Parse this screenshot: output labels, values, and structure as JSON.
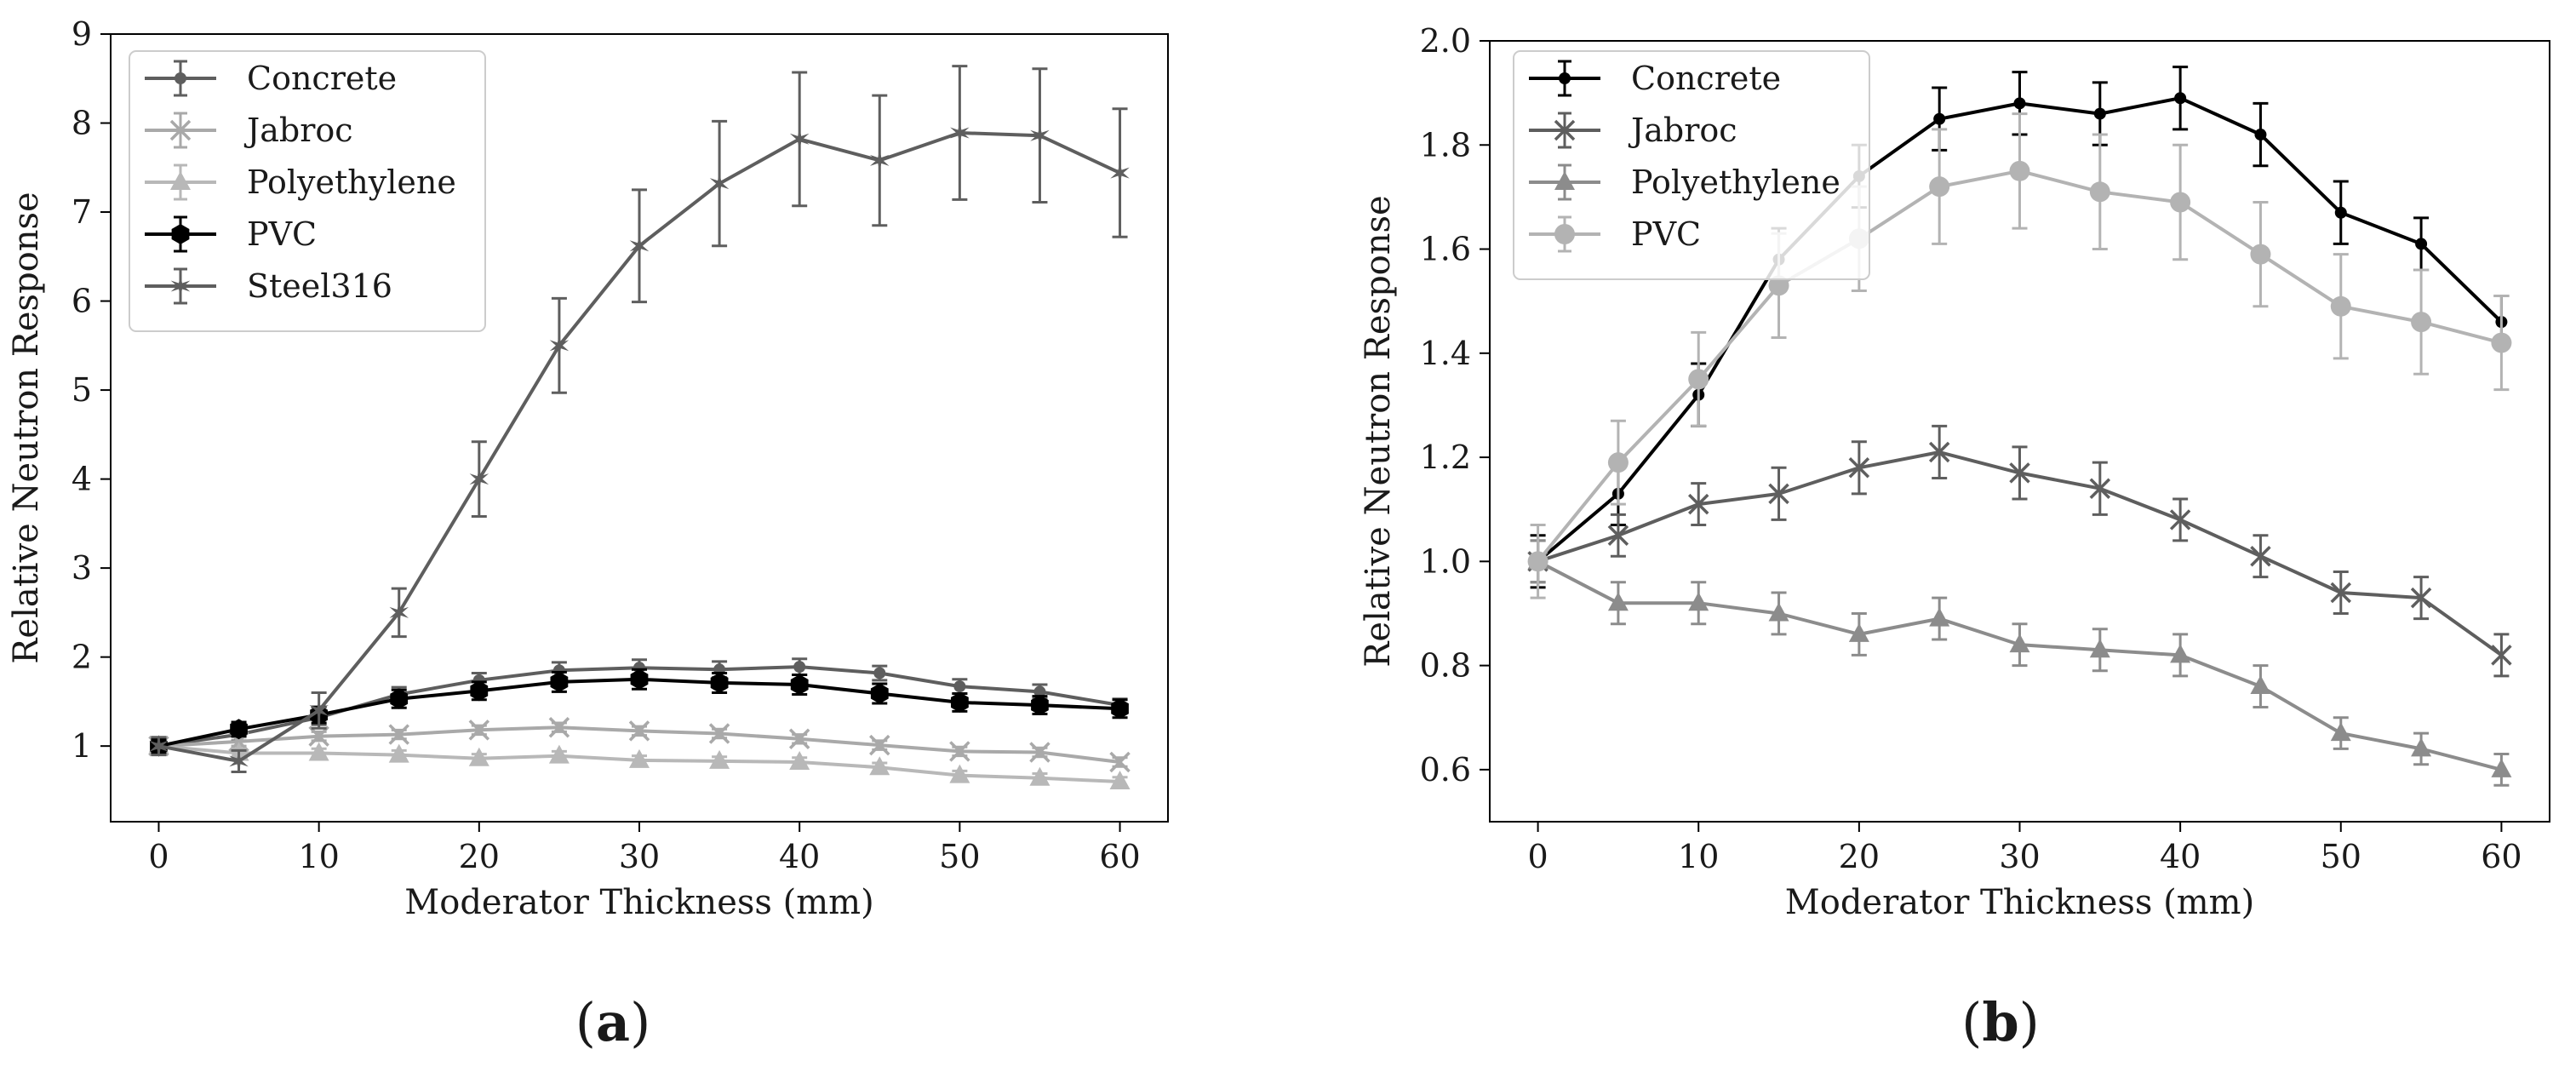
{
  "chart_data": [
    {
      "type": "line",
      "panel_label": "a",
      "title": "",
      "xlabel": "Moderator Thickness (mm)",
      "ylabel": "Relative Neutron Response",
      "xlim": [
        -3,
        63
      ],
      "ylim": [
        0.15,
        9.0
      ],
      "xticks": [
        0,
        10,
        20,
        30,
        40,
        50,
        60
      ],
      "yticks": [
        1,
        2,
        3,
        4,
        5,
        6,
        7,
        8,
        9
      ],
      "grid": false,
      "legend_position": "top-left",
      "x": [
        0,
        5,
        10,
        15,
        20,
        25,
        30,
        35,
        40,
        45,
        50,
        55,
        60
      ],
      "series": [
        {
          "name": "Concrete",
          "color": "#5e5e5e",
          "marker": "dot",
          "line_width": 4,
          "values": [
            1.0,
            1.13,
            1.32,
            1.58,
            1.74,
            1.85,
            1.88,
            1.86,
            1.89,
            1.82,
            1.67,
            1.61,
            1.46
          ],
          "errors": [
            0.06,
            0.07,
            0.08,
            0.08,
            0.08,
            0.09,
            0.09,
            0.09,
            0.09,
            0.08,
            0.08,
            0.08,
            0.07
          ]
        },
        {
          "name": "Jabroc",
          "color": "#a9a9a9",
          "marker": "x",
          "line_width": 4,
          "values": [
            1.0,
            1.05,
            1.11,
            1.13,
            1.18,
            1.21,
            1.17,
            1.14,
            1.08,
            1.01,
            0.94,
            0.93,
            0.82
          ],
          "errors": [
            0.05,
            0.05,
            0.05,
            0.05,
            0.05,
            0.05,
            0.05,
            0.05,
            0.05,
            0.05,
            0.05,
            0.05,
            0.05
          ]
        },
        {
          "name": "Polyethylene",
          "color": "#b8b8b8",
          "marker": "triangle",
          "line_width": 4,
          "values": [
            1.0,
            0.92,
            0.92,
            0.9,
            0.86,
            0.89,
            0.84,
            0.83,
            0.82,
            0.76,
            0.67,
            0.64,
            0.6
          ],
          "errors": [
            0.05,
            0.05,
            0.05,
            0.05,
            0.05,
            0.05,
            0.05,
            0.05,
            0.05,
            0.05,
            0.05,
            0.05,
            0.05
          ]
        },
        {
          "name": "PVC",
          "color": "#000000",
          "marker": "hexagon",
          "line_width": 4,
          "values": [
            1.0,
            1.19,
            1.35,
            1.53,
            1.62,
            1.72,
            1.75,
            1.71,
            1.69,
            1.59,
            1.49,
            1.46,
            1.42
          ],
          "errors": [
            0.08,
            0.08,
            0.09,
            0.1,
            0.1,
            0.11,
            0.11,
            0.11,
            0.11,
            0.11,
            0.1,
            0.1,
            0.1
          ]
        },
        {
          "name": "Steel316",
          "color": "#5e5e5e",
          "marker": "star",
          "line_width": 4,
          "values": [
            1.0,
            0.83,
            1.4,
            2.5,
            4.0,
            5.5,
            6.62,
            7.32,
            7.82,
            7.58,
            7.89,
            7.86,
            7.44
          ],
          "errors": [
            0.1,
            0.12,
            0.2,
            0.27,
            0.42,
            0.53,
            0.63,
            0.7,
            0.75,
            0.73,
            0.75,
            0.75,
            0.72
          ]
        }
      ]
    },
    {
      "type": "line",
      "panel_label": "b",
      "title": "",
      "xlabel": "Moderator Thickness (mm)",
      "ylabel": "Relative Neutron Response",
      "xlim": [
        -3,
        63
      ],
      "ylim": [
        0.5,
        2.0
      ],
      "xticks": [
        0,
        10,
        20,
        30,
        40,
        50,
        60
      ],
      "yticks": [
        0.6,
        0.8,
        1.0,
        1.2,
        1.4,
        1.6,
        1.8,
        2.0
      ],
      "ytick_labels": [
        "0.6",
        "0.8",
        "1.0",
        "1.2",
        "1.4",
        "1.6",
        "1.8",
        "2.0"
      ],
      "grid": false,
      "legend_position": "top-left",
      "x": [
        0,
        5,
        10,
        15,
        20,
        25,
        30,
        35,
        40,
        45,
        50,
        55,
        60
      ],
      "series": [
        {
          "name": "Concrete",
          "color": "#000000",
          "marker": "dot",
          "line_width": 4,
          "values": [
            1.0,
            1.13,
            1.32,
            1.58,
            1.74,
            1.85,
            1.88,
            1.86,
            1.89,
            1.82,
            1.67,
            1.61,
            1.46
          ],
          "errors": [
            0.05,
            0.06,
            0.06,
            0.06,
            0.06,
            0.06,
            0.06,
            0.06,
            0.06,
            0.06,
            0.06,
            0.05,
            0.05
          ]
        },
        {
          "name": "Jabroc",
          "color": "#5e5e5e",
          "marker": "x",
          "line_width": 4,
          "values": [
            1.0,
            1.05,
            1.11,
            1.13,
            1.18,
            1.21,
            1.17,
            1.14,
            1.08,
            1.01,
            0.94,
            0.93,
            0.82
          ],
          "errors": [
            0.04,
            0.04,
            0.04,
            0.05,
            0.05,
            0.05,
            0.05,
            0.05,
            0.04,
            0.04,
            0.04,
            0.04,
            0.04
          ]
        },
        {
          "name": "Polyethylene",
          "color": "#8c8c8c",
          "marker": "triangle",
          "line_width": 4,
          "values": [
            1.0,
            0.92,
            0.92,
            0.9,
            0.86,
            0.89,
            0.84,
            0.83,
            0.82,
            0.76,
            0.67,
            0.64,
            0.6
          ],
          "errors": [
            0.04,
            0.04,
            0.04,
            0.04,
            0.04,
            0.04,
            0.04,
            0.04,
            0.04,
            0.04,
            0.03,
            0.03,
            0.03
          ]
        },
        {
          "name": "PVC",
          "color": "#b3b3b3",
          "marker": "circle",
          "line_width": 4,
          "values": [
            1.0,
            1.19,
            1.35,
            1.53,
            1.62,
            1.72,
            1.75,
            1.71,
            1.69,
            1.59,
            1.49,
            1.46,
            1.42
          ],
          "errors": [
            0.07,
            0.08,
            0.09,
            0.1,
            0.1,
            0.11,
            0.11,
            0.11,
            0.11,
            0.1,
            0.1,
            0.1,
            0.09
          ]
        }
      ]
    }
  ]
}
